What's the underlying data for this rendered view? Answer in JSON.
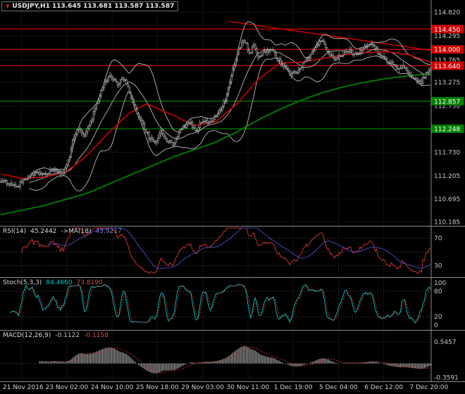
{
  "chart_data": {
    "type": "candlestick",
    "symbol": "USDJPY",
    "timeframe": "H1",
    "title_text": "USDJPY,H1 113.645 113.681 113.587 113.587",
    "ohlc_quote": {
      "open": "113.645",
      "high": "113.681",
      "low": "113.587",
      "close": "113.587"
    },
    "bars": 288,
    "x_ticks": [
      "21 Nov 2016",
      "23 Nov 02:00",
      "24 Nov 10:00",
      "25 Nov 18:00",
      "29 Nov 03:00",
      "30 Nov 11:00",
      "1 Dec 19:00",
      "5 Dec 04:00",
      "6 Dec 12:00",
      "7 Dec 20:00"
    ],
    "main": {
      "y_range": [
        110.15,
        115.06
      ],
      "y_ticks": [
        114.82,
        114.295,
        113.765,
        113.275,
        112.75,
        111.73,
        111.205,
        110.695,
        110.185
      ],
      "level_lines": [
        {
          "value": 114.45,
          "color": "#cc0000"
        },
        {
          "value": 114.0,
          "color": "#cc0000"
        },
        {
          "value": 113.64,
          "color": "#cc0000"
        },
        {
          "value": 112.857,
          "color": "#008000"
        },
        {
          "value": 112.248,
          "color": "#008000"
        }
      ],
      "trend_line": {
        "from": [
          0.53,
          114.62
        ],
        "to": [
          1.0,
          113.98
        ],
        "color": "#cc0000"
      },
      "price_path": [
        [
          0,
          111.1
        ],
        [
          0.02,
          111.02
        ],
        [
          0.04,
          110.98
        ],
        [
          0.06,
          111.18
        ],
        [
          0.08,
          111.28
        ],
        [
          0.1,
          111.22
        ],
        [
          0.12,
          111.35
        ],
        [
          0.145,
          111.26
        ],
        [
          0.158,
          111.55
        ],
        [
          0.168,
          112.05
        ],
        [
          0.18,
          112.28
        ],
        [
          0.195,
          112.12
        ],
        [
          0.21,
          112.4
        ],
        [
          0.225,
          112.85
        ],
        [
          0.24,
          113.25
        ],
        [
          0.255,
          113.42
        ],
        [
          0.27,
          113.22
        ],
        [
          0.285,
          113.38
        ],
        [
          0.3,
          113.05
        ],
        [
          0.315,
          112.6
        ],
        [
          0.33,
          112.35
        ],
        [
          0.345,
          112.05
        ],
        [
          0.36,
          111.95
        ],
        [
          0.372,
          112.18
        ],
        [
          0.385,
          112.02
        ],
        [
          0.4,
          111.9
        ],
        [
          0.412,
          112.12
        ],
        [
          0.425,
          112.3
        ],
        [
          0.44,
          112.38
        ],
        [
          0.455,
          112.22
        ],
        [
          0.47,
          112.45
        ],
        [
          0.485,
          112.38
        ],
        [
          0.5,
          112.55
        ],
        [
          0.515,
          112.7
        ],
        [
          0.528,
          113.05
        ],
        [
          0.54,
          113.55
        ],
        [
          0.552,
          113.95
        ],
        [
          0.565,
          114.25
        ],
        [
          0.578,
          113.92
        ],
        [
          0.59,
          114.08
        ],
        [
          0.6,
          113.78
        ],
        [
          0.615,
          113.95
        ],
        [
          0.63,
          114.02
        ],
        [
          0.645,
          113.78
        ],
        [
          0.66,
          113.62
        ],
        [
          0.675,
          113.45
        ],
        [
          0.69,
          113.52
        ],
        [
          0.705,
          113.68
        ],
        [
          0.72,
          113.88
        ],
        [
          0.735,
          114.1
        ],
        [
          0.748,
          114.22
        ],
        [
          0.76,
          113.98
        ],
        [
          0.775,
          113.78
        ],
        [
          0.79,
          113.88
        ],
        [
          0.805,
          114.0
        ],
        [
          0.82,
          113.92
        ],
        [
          0.835,
          113.96
        ],
        [
          0.85,
          114.06
        ],
        [
          0.862,
          114.12
        ],
        [
          0.875,
          113.98
        ],
        [
          0.89,
          113.82
        ],
        [
          0.905,
          113.72
        ],
        [
          0.92,
          113.58
        ],
        [
          0.935,
          113.64
        ],
        [
          0.95,
          113.48
        ],
        [
          0.965,
          113.34
        ],
        [
          0.978,
          113.26
        ],
        [
          0.99,
          113.48
        ],
        [
          1.0,
          113.59
        ]
      ],
      "wiggle": 0.05,
      "wick": 0.08,
      "ma_red_path": [
        [
          0,
          111.25
        ],
        [
          0.05,
          111.15
        ],
        [
          0.1,
          111.18
        ],
        [
          0.15,
          111.28
        ],
        [
          0.2,
          111.65
        ],
        [
          0.25,
          112.15
        ],
        [
          0.3,
          112.6
        ],
        [
          0.34,
          112.8
        ],
        [
          0.4,
          112.55
        ],
        [
          0.45,
          112.32
        ],
        [
          0.5,
          112.4
        ],
        [
          0.55,
          112.8
        ],
        [
          0.6,
          113.35
        ],
        [
          0.65,
          113.7
        ],
        [
          0.7,
          113.72
        ],
        [
          0.75,
          113.8
        ],
        [
          0.8,
          113.88
        ],
        [
          0.85,
          113.93
        ],
        [
          0.9,
          113.95
        ],
        [
          0.95,
          113.88
        ],
        [
          1.0,
          113.72
        ]
      ],
      "ma_green_path": [
        [
          0,
          110.35
        ],
        [
          0.1,
          110.55
        ],
        [
          0.2,
          110.82
        ],
        [
          0.3,
          111.22
        ],
        [
          0.4,
          111.62
        ],
        [
          0.5,
          111.95
        ],
        [
          0.55,
          112.18
        ],
        [
          0.6,
          112.45
        ],
        [
          0.65,
          112.68
        ],
        [
          0.7,
          112.88
        ],
        [
          0.75,
          113.05
        ],
        [
          0.8,
          113.18
        ],
        [
          0.85,
          113.28
        ],
        [
          0.9,
          113.36
        ],
        [
          0.95,
          113.42
        ],
        [
          1.0,
          113.46
        ]
      ],
      "bollinger": {
        "period": 20,
        "deviation": 2,
        "color": "#b8b8b8"
      },
      "candle_border": "#b8b8b8",
      "candle_fill": "#000000",
      "ma_red_color": "#cc0000",
      "ma_green_color": "#008000"
    },
    "rsi": {
      "label": "RSI(14)",
      "value": "45.2442",
      "ma_label": "->MA(18)",
      "ma_value": "43.9217",
      "period": 14,
      "ma_period": 18,
      "levels": [
        70,
        50,
        30
      ],
      "y_ticks": [
        70,
        30
      ],
      "y_range": [
        15,
        85
      ],
      "line_color": "#c83232",
      "ma_color": "#4040a0"
    },
    "stoch": {
      "label": "Stoch(5,3,3)",
      "value": "84.4660",
      "signal_value": "73.8190",
      "k_period": 5,
      "d_period": 3,
      "slowing": 3,
      "levels": [
        80,
        20
      ],
      "y_ticks": [
        100,
        80,
        20,
        0
      ],
      "y_range": [
        -8,
        108
      ],
      "line_color": "#00b4b4",
      "signal_color": "#c83232"
    },
    "macd": {
      "label": "MACD(12,26,9)",
      "value": "-0.1122",
      "signal_value": "-0.1158",
      "fast": 12,
      "slow": 26,
      "signal": 9,
      "y_ticks": [
        0.5457,
        -0.3591
      ],
      "y_range": [
        -0.42,
        0.8
      ],
      "hist_color": "#c0c0c0",
      "signal_color": "#c83232"
    }
  }
}
